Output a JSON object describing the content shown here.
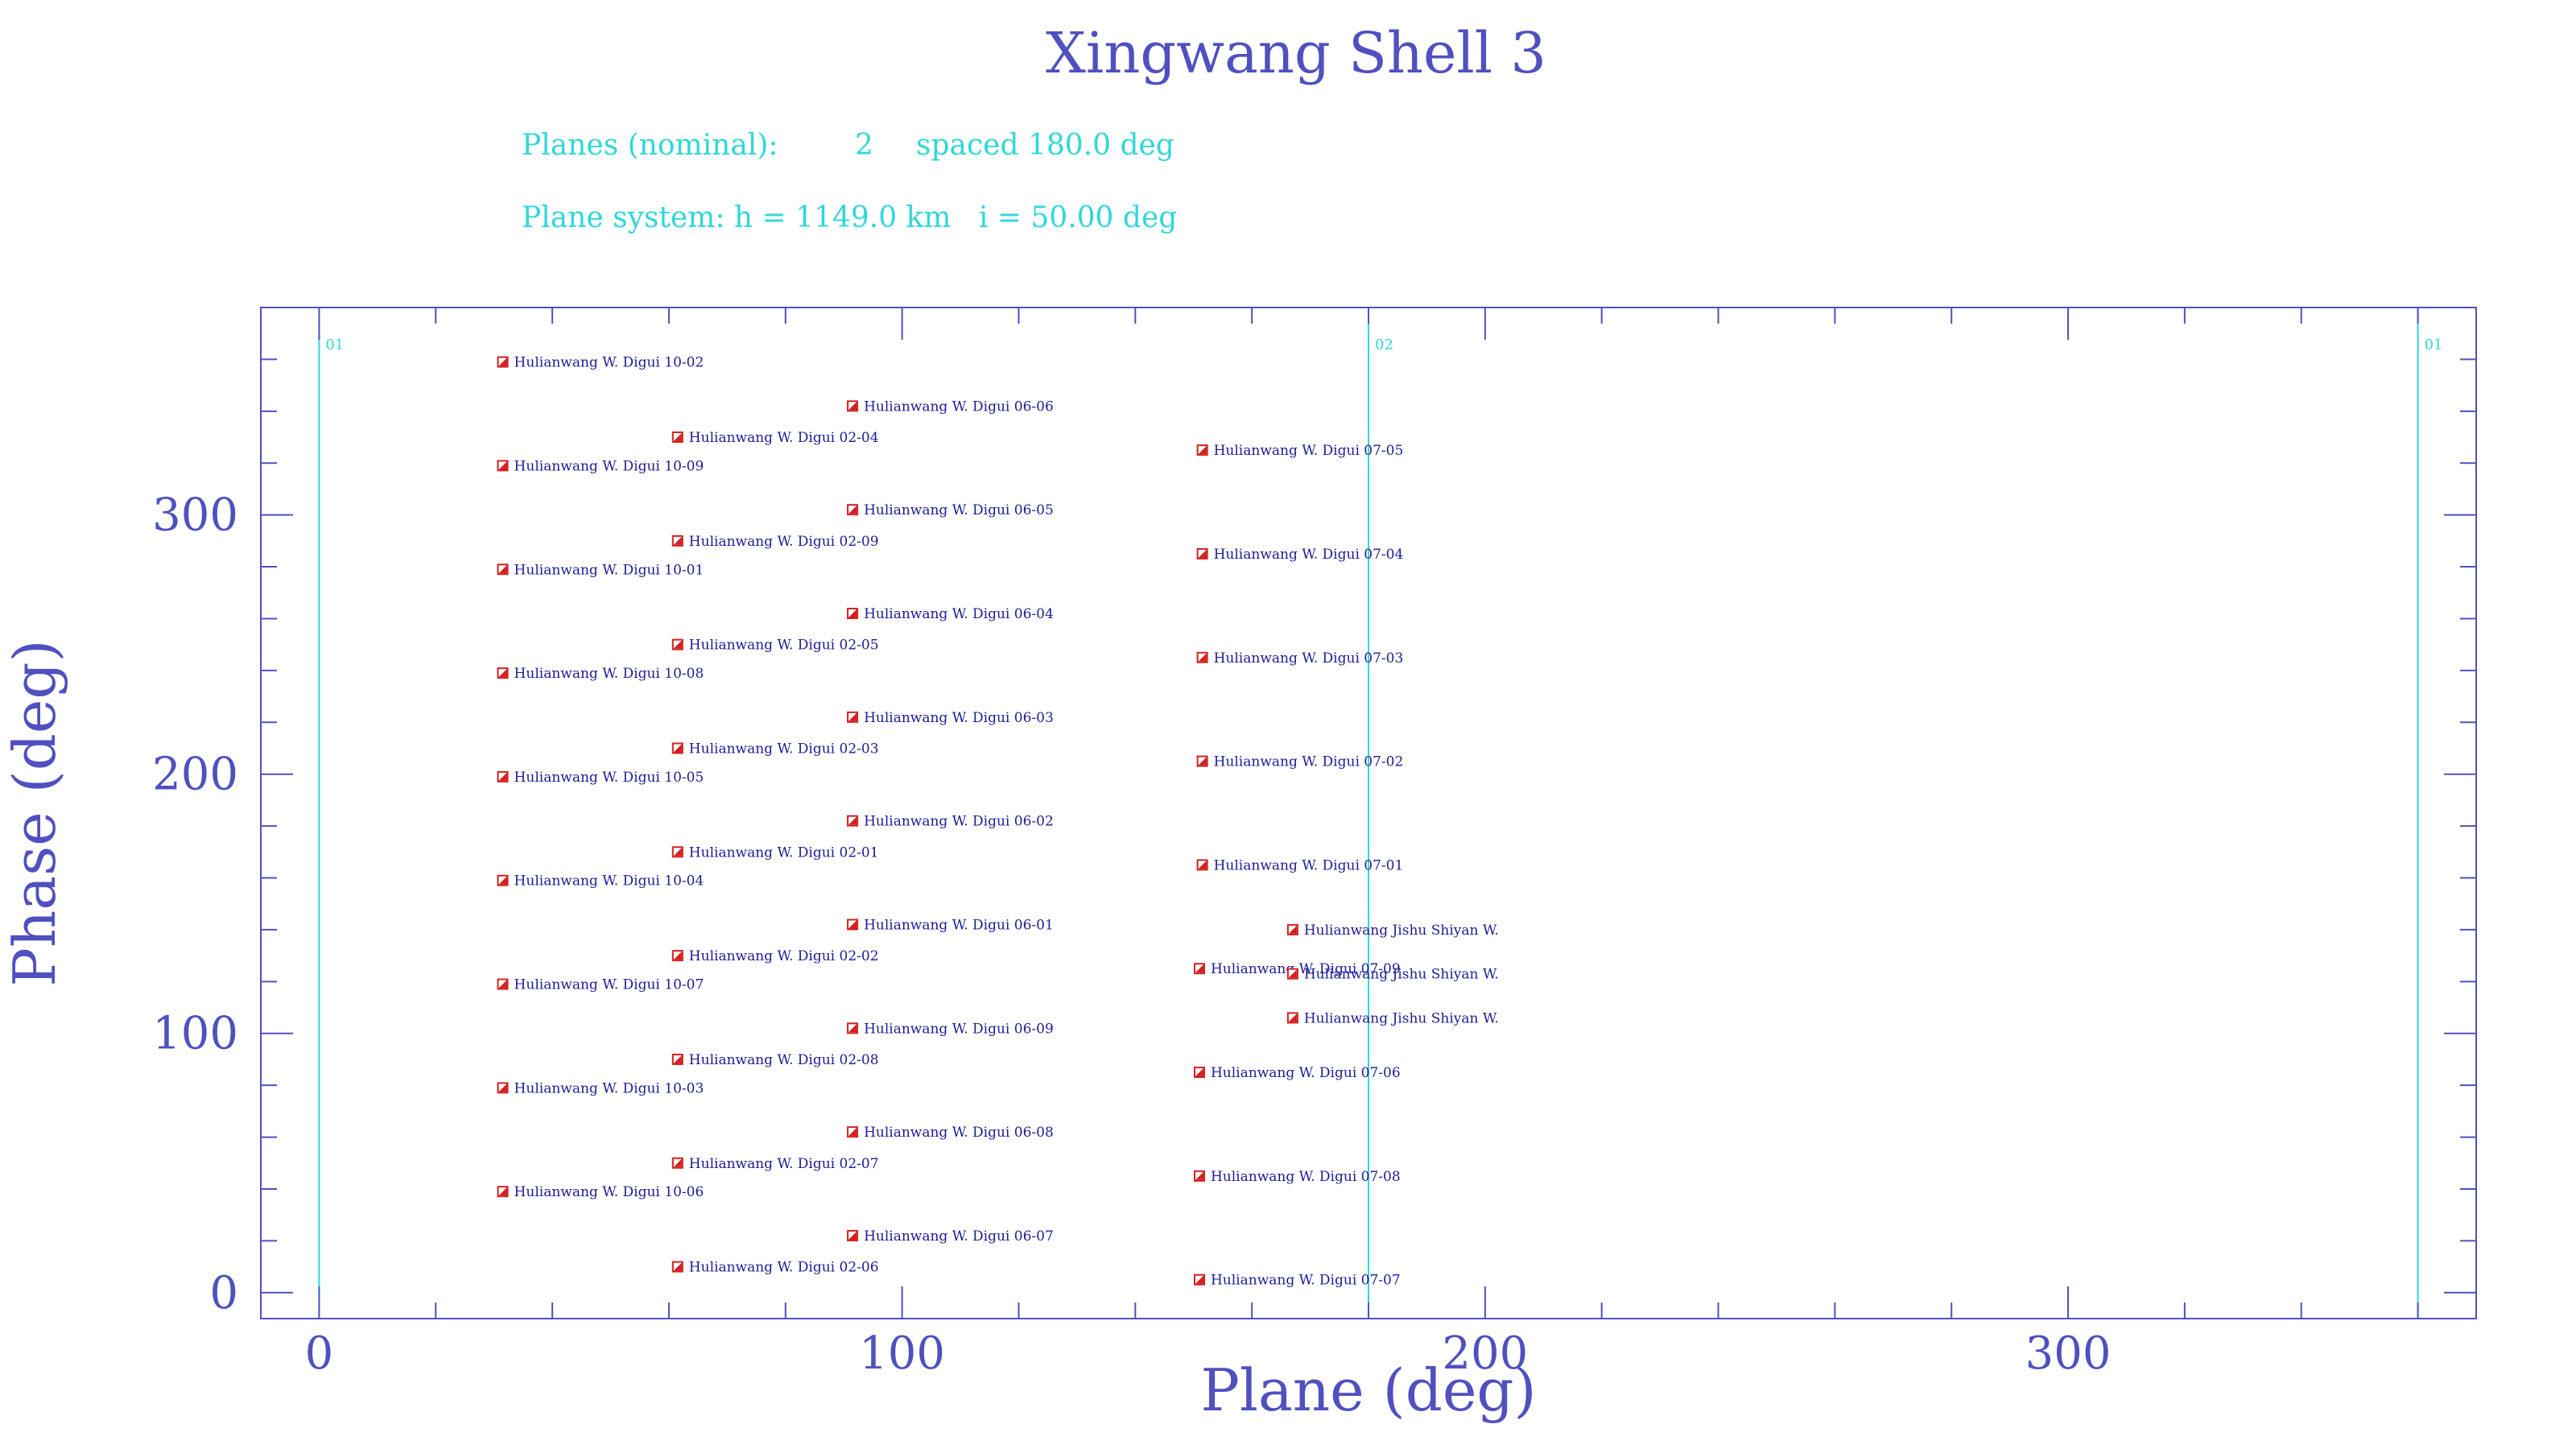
{
  "title": "Xingwang Shell 3",
  "info": {
    "planes_label": "Planes (nominal):",
    "planes_count": "2",
    "planes_spacing": "spaced 180.0 deg",
    "system": "Plane system: h = 1149.0 km   i = 50.00 deg"
  },
  "colors": {
    "axis": "#5050c0",
    "plane_line": "#2fd8d8",
    "marker": "#d42020",
    "label": "#1c1c96"
  },
  "chart_data": {
    "type": "scatter",
    "title": "Xingwang Shell 3",
    "xlabel": "Plane (deg)",
    "ylabel": "Phase (deg)",
    "xlim": [
      -10,
      370
    ],
    "ylim": [
      -10,
      380
    ],
    "x_ticks": [
      0,
      100,
      200,
      300
    ],
    "y_ticks": [
      0,
      100,
      200,
      300
    ],
    "planes": [
      {
        "x": 0,
        "label": "01"
      },
      {
        "x": 180,
        "label": "02"
      },
      {
        "x": 360,
        "label": "01"
      }
    ],
    "points": [
      {
        "x": 31.5,
        "y": 359,
        "label": "Hulianwang W. Digui 10-02"
      },
      {
        "x": 31.5,
        "y": 319,
        "label": "Hulianwang W. Digui 10-09"
      },
      {
        "x": 31.5,
        "y": 279,
        "label": "Hulianwang W. Digui 10-01"
      },
      {
        "x": 31.5,
        "y": 239,
        "label": "Hulianwang W. Digui 10-08"
      },
      {
        "x": 31.5,
        "y": 199,
        "label": "Hulianwang W. Digui 10-05"
      },
      {
        "x": 31.5,
        "y": 159,
        "label": "Hulianwang W. Digui 10-04"
      },
      {
        "x": 31.5,
        "y": 119,
        "label": "Hulianwang W. Digui 10-07"
      },
      {
        "x": 31.5,
        "y": 79,
        "label": "Hulianwang W. Digui 10-03"
      },
      {
        "x": 31.5,
        "y": 39,
        "label": "Hulianwang W. Digui 10-06"
      },
      {
        "x": 61.5,
        "y": 330,
        "label": "Hulianwang W. Digui 02-04"
      },
      {
        "x": 61.5,
        "y": 290,
        "label": "Hulianwang W. Digui 02-09"
      },
      {
        "x": 61.5,
        "y": 250,
        "label": "Hulianwang W. Digui 02-05"
      },
      {
        "x": 61.5,
        "y": 210,
        "label": "Hulianwang W. Digui 02-03"
      },
      {
        "x": 61.5,
        "y": 170,
        "label": "Hulianwang W. Digui 02-01"
      },
      {
        "x": 61.5,
        "y": 130,
        "label": "Hulianwang W. Digui 02-02"
      },
      {
        "x": 61.5,
        "y": 90,
        "label": "Hulianwang W. Digui 02-08"
      },
      {
        "x": 61.5,
        "y": 50,
        "label": "Hulianwang W. Digui 02-07"
      },
      {
        "x": 61.5,
        "y": 10,
        "label": "Hulianwang W. Digui 02-06"
      },
      {
        "x": 91.5,
        "y": 342,
        "label": "Hulianwang W. Digui 06-06"
      },
      {
        "x": 91.5,
        "y": 302,
        "label": "Hulianwang W. Digui 06-05"
      },
      {
        "x": 91.5,
        "y": 262,
        "label": "Hulianwang W. Digui 06-04"
      },
      {
        "x": 91.5,
        "y": 222,
        "label": "Hulianwang W. Digui 06-03"
      },
      {
        "x": 91.5,
        "y": 182,
        "label": "Hulianwang W. Digui 06-02"
      },
      {
        "x": 91.5,
        "y": 142,
        "label": "Hulianwang W. Digui 06-01"
      },
      {
        "x": 91.5,
        "y": 102,
        "label": "Hulianwang W. Digui 06-09"
      },
      {
        "x": 91.5,
        "y": 62,
        "label": "Hulianwang W. Digui 06-08"
      },
      {
        "x": 91.5,
        "y": 22,
        "label": "Hulianwang W. Digui 06-07"
      },
      {
        "x": 151.5,
        "y": 325,
        "label": "Hulianwang W. Digui 07-05"
      },
      {
        "x": 151.5,
        "y": 285,
        "label": "Hulianwang W. Digui 07-04"
      },
      {
        "x": 151.5,
        "y": 245,
        "label": "Hulianwang W. Digui 07-03"
      },
      {
        "x": 151.5,
        "y": 205,
        "label": "Hulianwang W. Digui 07-02"
      },
      {
        "x": 151.5,
        "y": 165,
        "label": "Hulianwang W. Digui 07-01"
      },
      {
        "x": 151,
        "y": 125,
        "label": "Hulianwang W. Digui 07-09"
      },
      {
        "x": 151,
        "y": 85,
        "label": "Hulianwang W. Digui 07-06"
      },
      {
        "x": 151,
        "y": 45,
        "label": "Hulianwang W. Digui 07-08"
      },
      {
        "x": 151,
        "y": 5,
        "label": "Hulianwang W. Digui 07-07"
      },
      {
        "x": 167,
        "y": 140,
        "label": "Hulianwang Jishu Shiyan W."
      },
      {
        "x": 167,
        "y": 123,
        "label": "Hulianwang Jishu Shiyan W."
      },
      {
        "x": 167,
        "y": 106,
        "label": "Hulianwang Jishu Shiyan W."
      }
    ]
  }
}
